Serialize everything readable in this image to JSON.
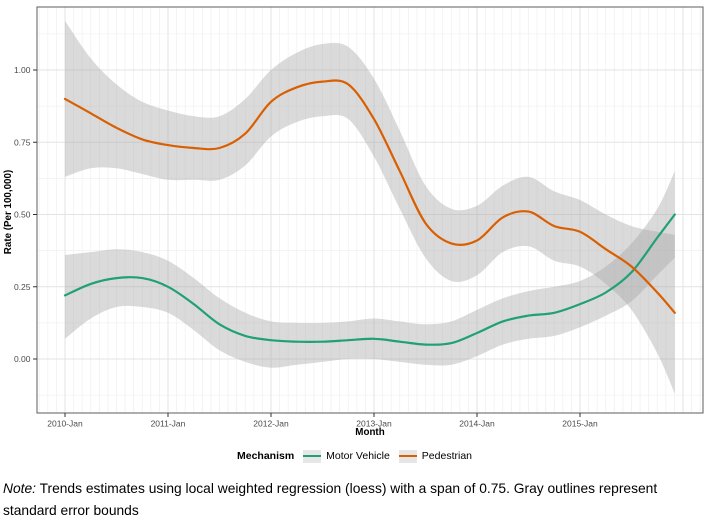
{
  "figure": {
    "legend_title": "Mechanism",
    "note_prefix": "Note:",
    "note_body": " Trends estimates using local weighted regression (loess) with a span of 0.75. Gray outlines represent standard error bounds"
  },
  "chart_data": {
    "type": "line",
    "title": "",
    "xlabel": "Month",
    "ylabel": "Rate (Per 100,000)",
    "x_tick_labels": [
      "2010-Jan",
      "2011-Jan",
      "2012-Jan",
      "2013-Jan",
      "2014-Jan",
      "2015-Jan"
    ],
    "x_ticks_years_since_2010": [
      0,
      1,
      2,
      3,
      4,
      5
    ],
    "y_tick_labels": [
      "0.00",
      "0.25",
      "0.50",
      "0.75",
      "1.00"
    ],
    "y_ticks": [
      0,
      0.25,
      0.5,
      0.75,
      1.0
    ],
    "ylim": [
      -0.19,
      1.22
    ],
    "xlim_years_since_2010": [
      -0.27,
      6.19
    ],
    "grid": "major-and-minor, minor monthly x and 0.125 y",
    "legend_position": "bottom",
    "ribbon_note": "gray standard-error ribbons around each loess line",
    "ribbon_color": "#a8a8a8",
    "ribbon_opacity": 0.42,
    "series": [
      {
        "name": "Motor Vehicle",
        "color": "#1fa077",
        "x": [
          0,
          0.25,
          0.5,
          0.75,
          1,
          1.25,
          1.5,
          1.75,
          2,
          2.25,
          2.5,
          2.75,
          3,
          3.25,
          3.5,
          3.75,
          4,
          4.25,
          4.5,
          4.75,
          5,
          5.25,
          5.5,
          5.75,
          5.92
        ],
        "y": [
          0.22,
          0.26,
          0.28,
          0.28,
          0.25,
          0.19,
          0.12,
          0.08,
          0.065,
          0.06,
          0.06,
          0.065,
          0.07,
          0.06,
          0.05,
          0.055,
          0.09,
          0.13,
          0.15,
          0.16,
          0.19,
          0.23,
          0.3,
          0.42,
          0.5
        ],
        "lo": [
          0.07,
          0.14,
          0.18,
          0.18,
          0.16,
          0.1,
          0.03,
          -0.01,
          -0.03,
          -0.02,
          -0.01,
          0,
          0,
          -0.01,
          -0.02,
          -0.02,
          0.01,
          0.05,
          0.07,
          0.08,
          0.11,
          0.15,
          0.2,
          0.29,
          0.35
        ],
        "hi": [
          0.36,
          0.37,
          0.38,
          0.37,
          0.34,
          0.28,
          0.21,
          0.16,
          0.13,
          0.125,
          0.125,
          0.13,
          0.14,
          0.13,
          0.12,
          0.13,
          0.17,
          0.21,
          0.235,
          0.25,
          0.27,
          0.32,
          0.4,
          0.52,
          0.65
        ]
      },
      {
        "name": "Pedestrian",
        "color": "#d95f02",
        "x": [
          0,
          0.25,
          0.5,
          0.75,
          1,
          1.25,
          1.5,
          1.75,
          2,
          2.25,
          2.5,
          2.75,
          3,
          3.25,
          3.5,
          3.75,
          4,
          4.25,
          4.5,
          4.75,
          5,
          5.25,
          5.5,
          5.75,
          5.92
        ],
        "y": [
          0.9,
          0.85,
          0.8,
          0.76,
          0.74,
          0.73,
          0.73,
          0.78,
          0.89,
          0.94,
          0.96,
          0.95,
          0.83,
          0.65,
          0.47,
          0.4,
          0.41,
          0.49,
          0.51,
          0.46,
          0.44,
          0.38,
          0.32,
          0.23,
          0.16
        ],
        "lo": [
          0.63,
          0.66,
          0.66,
          0.64,
          0.62,
          0.62,
          0.62,
          0.67,
          0.77,
          0.82,
          0.84,
          0.83,
          0.7,
          0.52,
          0.35,
          0.27,
          0.29,
          0.37,
          0.39,
          0.34,
          0.32,
          0.26,
          0.17,
          0.02,
          -0.12
        ],
        "hi": [
          1.17,
          1.04,
          0.95,
          0.89,
          0.86,
          0.84,
          0.84,
          0.9,
          1.0,
          1.06,
          1.09,
          1.08,
          0.97,
          0.79,
          0.6,
          0.52,
          0.53,
          0.6,
          0.63,
          0.58,
          0.55,
          0.5,
          0.46,
          0.44,
          0.43
        ]
      }
    ]
  }
}
